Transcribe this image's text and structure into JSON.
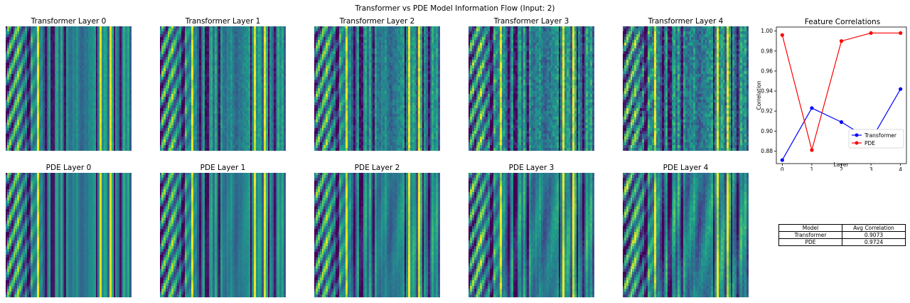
{
  "figure": {
    "title": "Transformer vs PDE Model Information Flow (Input: 2)"
  },
  "heatmaps": {
    "transformer": [
      "Transformer Layer 0",
      "Transformer Layer 1",
      "Transformer Layer 2",
      "Transformer Layer 3",
      "Transformer Layer 4"
    ],
    "pde": [
      "PDE Layer 0",
      "PDE Layer 1",
      "PDE Layer 2",
      "PDE Layer 3",
      "PDE Layer 4"
    ]
  },
  "colormap": "viridis",
  "chart_data": {
    "type": "line",
    "title": "Feature Correlations",
    "xlabel": "Layer",
    "ylabel": "Correlation",
    "x": [
      0,
      1,
      2,
      3,
      4
    ],
    "ylim": [
      0.87,
      1.0
    ],
    "yticks": [
      "0.88",
      "0.90",
      "0.92",
      "0.94",
      "0.96",
      "0.98",
      "1.00"
    ],
    "series": [
      {
        "name": "Transformer",
        "color": "#0000ff",
        "values": [
          0.871,
          0.923,
          0.909,
          0.891,
          0.942
        ]
      },
      {
        "name": "PDE",
        "color": "#ff0000",
        "values": [
          0.996,
          0.881,
          0.99,
          0.998,
          0.998
        ]
      }
    ],
    "legend_position": "lower-right",
    "grid": false
  },
  "summary_table": {
    "headers": [
      "Model",
      "Avg Correlation"
    ],
    "rows": [
      [
        "Transformer",
        "0.9073"
      ],
      [
        "PDE",
        "0.9724"
      ]
    ]
  }
}
